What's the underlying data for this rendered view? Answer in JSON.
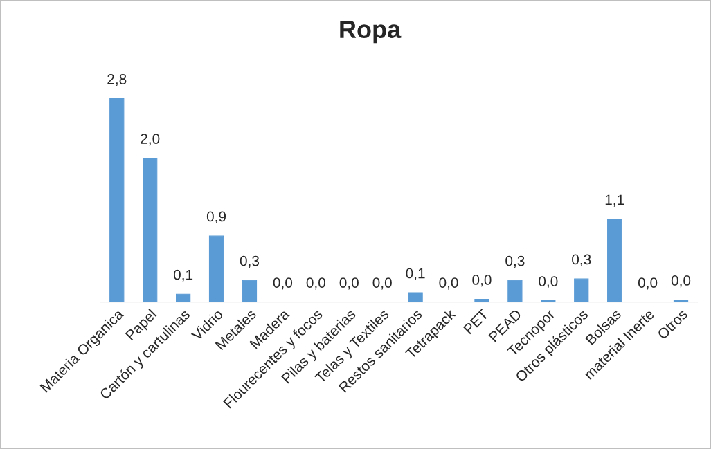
{
  "chart_data": {
    "type": "bar",
    "title": "Ropa",
    "categories": [
      "Materia Organica",
      "Papel",
      "Cartón y cartulinas",
      "Vidrio",
      "Metales",
      "Madera",
      "Flourecentes y focos",
      "Pilas y baterias",
      "Telas y Textiles",
      "Restos sanitarios",
      "Tetrapack",
      "PET",
      "PEAD",
      "Tecnopor",
      "Otros plásticos",
      "Bolsas",
      "material Inerte",
      "Otros"
    ],
    "values": [
      2.8,
      1.98,
      0.11,
      0.91,
      0.3,
      0,
      0,
      0,
      0,
      0.13,
      0,
      0.04,
      0.3,
      0.02,
      0.32,
      1.14,
      0,
      0.03
    ],
    "value_labels": [
      "2,8",
      "2,0",
      "0,1",
      "0,9",
      "0,3",
      "0,0",
      "0,0",
      "0,0",
      "0,0",
      "0,1",
      "0,0",
      "0,0",
      "0,3",
      "0,0",
      "0,3",
      "1,1",
      "0,0",
      "0,0"
    ],
    "color": "#5b9bd5",
    "grid": false,
    "legend": false
  }
}
